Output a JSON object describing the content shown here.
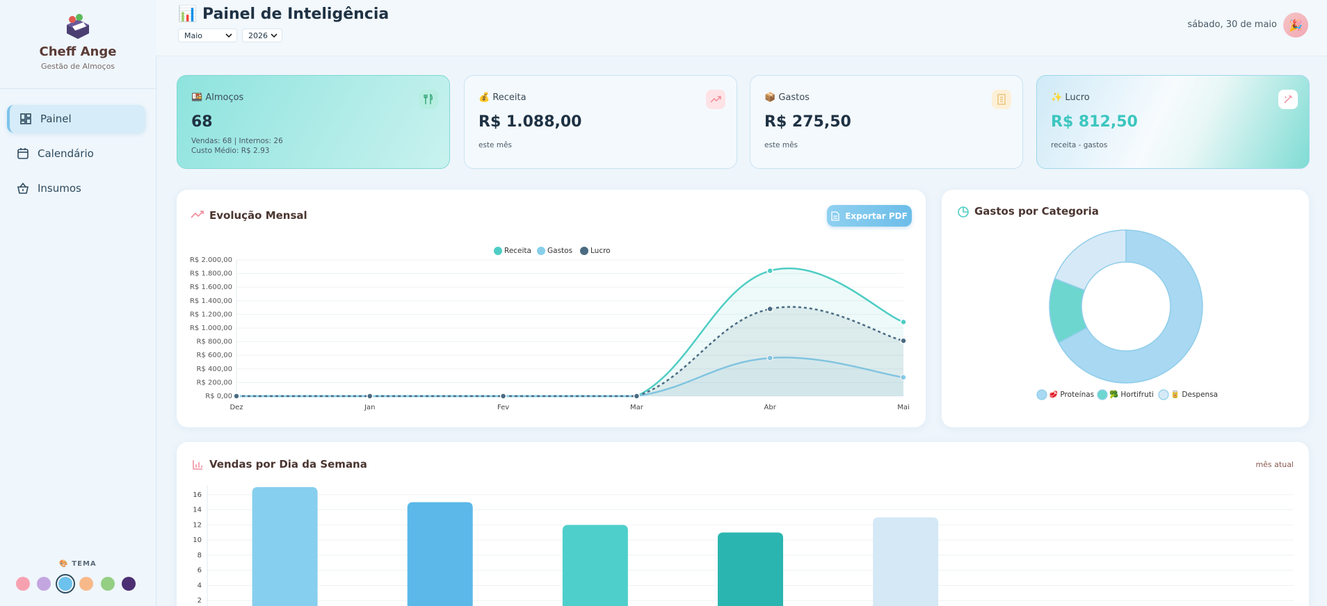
{
  "sidebar": {
    "brand": "Cheff Ange",
    "tagline": "Gestão de Almoços",
    "nav": [
      "Painel",
      "Calendário",
      "Insumos"
    ],
    "theme_label": "🎨 TEMA"
  },
  "header": {
    "title": "📊 Painel de Inteligência",
    "month": "Maio",
    "year": "2026",
    "date": "sábado, 30 de maio"
  },
  "cards": [
    {
      "label": "🍱 Almoços",
      "value": "68",
      "lines": [
        "Vendas: 68 | Internos: 26",
        "Custo Médio: R$ 2.93"
      ]
    },
    {
      "label": "💰 Receita",
      "value": "R$ 1.088,00",
      "lines": [
        "este mês"
      ]
    },
    {
      "label": "📦 Gastos",
      "value": "R$ 275,50",
      "lines": [
        "este mês"
      ]
    },
    {
      "label": "✨ Lucro",
      "value": "R$ 812,50",
      "lines": [
        "receita - gastos"
      ]
    }
  ],
  "export_button": "Exportar PDF",
  "chart_data": [
    {
      "type": "line",
      "title": "Evolução Mensal",
      "categories": [
        "Dez",
        "Jan",
        "Fev",
        "Mar",
        "Abr",
        "Mai"
      ],
      "series": [
        {
          "name": "Receita",
          "color": "#4ecdc4",
          "values": [
            0,
            0,
            0,
            0,
            1840,
            1088
          ]
        },
        {
          "name": "Gastos",
          "color": "#87ceeb",
          "values": [
            0,
            0,
            0,
            0,
            560,
            275.5
          ]
        },
        {
          "name": "Lucro",
          "color": "#4a6b82",
          "values": [
            0,
            0,
            0,
            0,
            1280,
            812.5
          ],
          "dashed": true
        }
      ],
      "ylim": [
        0,
        2000
      ],
      "yticks": [
        {
          "value": 0,
          "label": "R$ 0,00"
        },
        {
          "value": 200,
          "label": "R$ 200,00"
        },
        {
          "value": 400,
          "label": "R$ 400,00"
        },
        {
          "value": 600,
          "label": "R$ 600,00"
        },
        {
          "value": 800,
          "label": "R$ 800,00"
        },
        {
          "value": 1000,
          "label": "R$ 1.000,00"
        },
        {
          "value": 1200,
          "label": "R$ 1.200,00"
        },
        {
          "value": 1400,
          "label": "R$ 1.400,00"
        },
        {
          "value": 1600,
          "label": "R$ 1.600,00"
        },
        {
          "value": 1800,
          "label": "R$ 1.800,00"
        },
        {
          "value": 2000,
          "label": "R$ 2.000,00"
        }
      ],
      "grid": true,
      "legend": "top"
    },
    {
      "type": "pie",
      "title": "Gastos por Categoria",
      "categories": [
        "🥩 Proteínas",
        "🥦 Hortifruti",
        "🥫 Despensa"
      ],
      "values": [
        185,
        38,
        52.5
      ],
      "colors": [
        "#a8d8f2",
        "#6dd6cf",
        "#d6e9f6"
      ],
      "donut": true,
      "legend": "bottom"
    },
    {
      "type": "bar",
      "title": "Vendas por Dia da Semana",
      "subtitle": "mês atual",
      "categories": [
        null,
        null,
        null,
        null,
        null,
        null,
        null
      ],
      "values": [
        17,
        15,
        12,
        11,
        13,
        0,
        0
      ],
      "colors": [
        "#87cfee",
        "#5bb8e8",
        "#4ecfcb",
        "#2bb5b0",
        "#d4e8f5",
        "#87cfee",
        "#5bb8e8"
      ],
      "ylim": [
        0,
        18
      ],
      "yticks": [
        2,
        4,
        6,
        8,
        10,
        12,
        14,
        16
      ],
      "grid": true
    }
  ]
}
